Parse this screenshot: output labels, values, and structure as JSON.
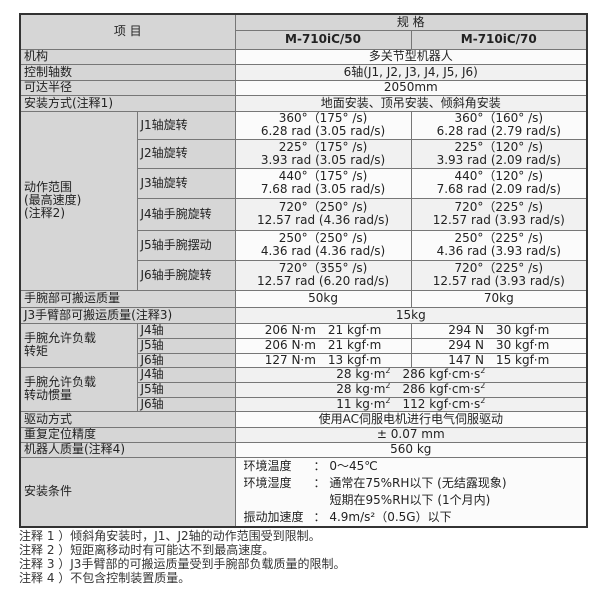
{
  "header": {
    "item": "项 目",
    "spec": "规 格",
    "model_a": "M-710iC/50",
    "model_b": "M-710iC/70"
  },
  "rows": {
    "mechanism": {
      "label": "机构",
      "value": "多关节型机器人"
    },
    "axes": {
      "label": "控制轴数",
      "value": "6轴(J1, J2, J3, J4, J5, J6)"
    },
    "reach": {
      "label": "可达半径",
      "value": "2050mm"
    },
    "mounting": {
      "label": "安装方式(注释1)",
      "value": "地面安装、顶吊安装、倾斜角安装"
    }
  },
  "motion": {
    "label1": "动作范围",
    "label2": "(最高速度)",
    "label3": "(注释2)",
    "axes": [
      {
        "name": "J1轴旋转",
        "a1": "360°（175° /s)",
        "a2": "6.28 rad (3.05 rad/s)",
        "b1": "360°（160° /s)",
        "b2": "6.28 rad (2.79 rad/s)"
      },
      {
        "name": "J2轴旋转",
        "a1": "225°（175° /s)",
        "a2": "3.93 rad (3.05 rad/s)",
        "b1": "225°（120° /s)",
        "b2": "3.93 rad (2.09 rad/s)"
      },
      {
        "name": "J3轴旋转",
        "a1": "440°（175° /s)",
        "a2": "7.68 rad (3.05 rad/s)",
        "b1": "440°（120° /s)",
        "b2": "7.68 rad (2.09 rad/s)"
      },
      {
        "name": "J4轴手腕旋转",
        "a1": "720°（250° /s)",
        "a2": "12.57 rad (4.36 rad/s)",
        "b1": "720°（225° /s)",
        "b2": "12.57 rad (3.93 rad/s)"
      },
      {
        "name": "J5轴手腕摆动",
        "a1": "250°（250° /s)",
        "a2": "4.36 rad (4.36 rad/s)",
        "b1": "250°（225° /s)",
        "b2": "4.36 rad (3.93 rad/s)"
      },
      {
        "name": "J6轴手腕旋转",
        "a1": "720°（355° /s)",
        "a2": "12.57 rad (6.20 rad/s)",
        "b1": "720°（225° /s)",
        "b2": "12.57 rad (3.93 rad/s)"
      }
    ]
  },
  "payload": {
    "label": "手腕部可搬运质量",
    "a": "50kg",
    "b": "70kg"
  },
  "j3payload": {
    "label": "J3手臂部可搬运质量(注释3)",
    "value": "15kg"
  },
  "torque": {
    "label1": "手腕允许负载",
    "label2": "转矩",
    "axes": [
      {
        "name": "J4轴",
        "a": "206 N·m　21 kgf·m",
        "b": "294 N　30 kgf·m"
      },
      {
        "name": "J5轴",
        "a": "206 N·m　21 kgf·m",
        "b": "294 N　30 kgf·m"
      },
      {
        "name": "J6轴",
        "a": "127 N·m　13 kgf·m",
        "b": "147 N　15 kgf·m"
      }
    ]
  },
  "inertia": {
    "label1": "手腕允许负载",
    "label2": "转动惯量",
    "axes": [
      {
        "name": "J4轴",
        "v1": "28 kg·m",
        "v2": "286 kgf·cm·s"
      },
      {
        "name": "J5轴",
        "v1": "28 kg·m",
        "v2": "286 kgf·cm·s"
      },
      {
        "name": "J6轴",
        "v1": "11 kg·m",
        "v2": "112 kgf·cm·s"
      }
    ],
    "sup": "2"
  },
  "drive": {
    "label": "驱动方式",
    "value": "使用AC伺服电机进行电气伺服驱动"
  },
  "repeat": {
    "label": "重复定位精度",
    "value": "± 0.07 mm"
  },
  "mass": {
    "label": "机器人质量(注释4)",
    "value": "560 kg"
  },
  "env": {
    "label": "安装条件",
    "temp_k": "环境温度",
    "temp_v": "： 0～45℃",
    "hum_k": "环境湿度",
    "hum_v1": "： 通常在75%RH以下 (无结露现象)",
    "hum_v2": "短期在95%RH以下 (1个月内)",
    "vib_k": "振动加速度",
    "vib_v": "： 4.9m/s²（0.5G）以下"
  },
  "notes": [
    "注释 1 ）倾斜角安装时，J1、J2轴的动作范围受到限制。",
    "注释 2 ）短距离移动时有可能达不到最高速度。",
    "注释 3 ）J3手臂部的可搬运质量受到手腕部负载质量的限制。",
    "注释 4 ）不包含控制装置质量。"
  ]
}
